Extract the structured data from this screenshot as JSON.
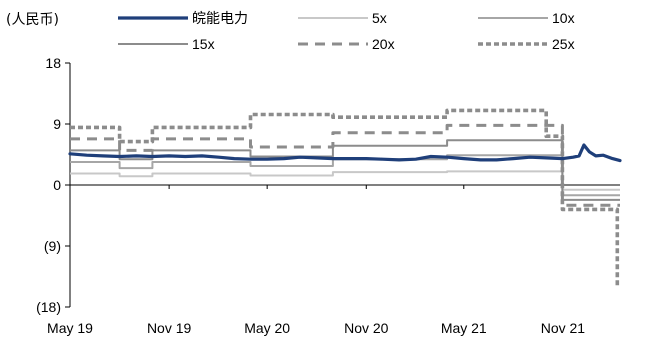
{
  "unit_label": "(人民币)",
  "chart_data": {
    "type": "line",
    "title": "",
    "xlabel": "",
    "ylabel": "(人民币)",
    "ylim": [
      -18,
      18
    ],
    "y_ticks": [
      18,
      9,
      0,
      -9,
      -18
    ],
    "y_tick_labels": [
      "18",
      "9",
      "0",
      "(9)",
      "(18)"
    ],
    "x_range": [
      "2019-05-01",
      "2022-02-15"
    ],
    "x_ticks": [
      "2019-05-01",
      "2019-11-01",
      "2020-05-01",
      "2020-11-01",
      "2021-05-01",
      "2021-11-01"
    ],
    "x_tick_labels": [
      "May 19",
      "Nov 19",
      "May 20",
      "Nov 20",
      "May 21",
      "Nov 21"
    ],
    "grid": false,
    "legend_position": "top",
    "series": [
      {
        "name": "皖能电力",
        "color": "#1f3f7a",
        "style": "solid-thick",
        "points": [
          [
            "2019-05-01",
            4.6
          ],
          [
            "2019-06-01",
            4.4
          ],
          [
            "2019-07-01",
            4.3
          ],
          [
            "2019-08-01",
            4.2
          ],
          [
            "2019-09-01",
            4.3
          ],
          [
            "2019-10-01",
            4.2
          ],
          [
            "2019-11-01",
            4.3
          ],
          [
            "2019-12-01",
            4.2
          ],
          [
            "2020-01-01",
            4.3
          ],
          [
            "2020-02-01",
            4.1
          ],
          [
            "2020-03-01",
            3.9
          ],
          [
            "2020-04-01",
            3.8
          ],
          [
            "2020-05-01",
            3.8
          ],
          [
            "2020-06-01",
            3.9
          ],
          [
            "2020-07-01",
            4.1
          ],
          [
            "2020-08-01",
            4.0
          ],
          [
            "2020-09-01",
            3.9
          ],
          [
            "2020-10-01",
            3.9
          ],
          [
            "2020-11-01",
            3.9
          ],
          [
            "2020-12-01",
            3.8
          ],
          [
            "2021-01-01",
            3.7
          ],
          [
            "2021-02-01",
            3.8
          ],
          [
            "2021-03-01",
            4.2
          ],
          [
            "2021-04-01",
            4.1
          ],
          [
            "2021-05-01",
            3.9
          ],
          [
            "2021-06-01",
            3.7
          ],
          [
            "2021-07-01",
            3.7
          ],
          [
            "2021-08-01",
            3.9
          ],
          [
            "2021-09-01",
            4.1
          ],
          [
            "2021-10-01",
            4.0
          ],
          [
            "2021-11-01",
            3.9
          ],
          [
            "2021-11-20",
            4.1
          ],
          [
            "2021-12-01",
            4.3
          ],
          [
            "2021-12-10",
            5.9
          ],
          [
            "2021-12-20",
            4.9
          ],
          [
            "2022-01-01",
            4.3
          ],
          [
            "2022-01-15",
            4.4
          ],
          [
            "2022-02-01",
            3.9
          ],
          [
            "2022-02-15",
            3.6
          ]
        ]
      },
      {
        "name": "5x",
        "color": "#c8c8c8",
        "style": "solid",
        "points": [
          [
            "2019-05-01",
            1.7
          ],
          [
            "2019-08-01",
            1.7
          ],
          [
            "2019-08-01",
            1.3
          ],
          [
            "2019-10-01",
            1.3
          ],
          [
            "2019-10-01",
            1.7
          ],
          [
            "2020-03-31",
            1.7
          ],
          [
            "2020-03-31",
            1.4
          ],
          [
            "2020-08-31",
            1.4
          ],
          [
            "2020-08-31",
            1.9
          ],
          [
            "2021-03-31",
            1.9
          ],
          [
            "2021-03-31",
            2.0
          ],
          [
            "2021-10-31",
            2.0
          ],
          [
            "2021-10-31",
            -0.7
          ],
          [
            "2022-02-15",
            -0.7
          ]
        ]
      },
      {
        "name": "10x",
        "color": "#a6a6a6",
        "style": "solid",
        "points": [
          [
            "2019-05-01",
            3.4
          ],
          [
            "2019-08-01",
            3.4
          ],
          [
            "2019-08-01",
            2.5
          ],
          [
            "2019-10-01",
            2.5
          ],
          [
            "2019-10-01",
            3.4
          ],
          [
            "2020-03-31",
            3.4
          ],
          [
            "2020-03-31",
            2.8
          ],
          [
            "2020-08-31",
            2.8
          ],
          [
            "2020-08-31",
            3.8
          ],
          [
            "2021-03-31",
            3.8
          ],
          [
            "2021-03-31",
            4.4
          ],
          [
            "2021-10-31",
            4.4
          ],
          [
            "2021-10-31",
            -1.5
          ],
          [
            "2022-02-15",
            -1.5
          ]
        ]
      },
      {
        "name": "15x",
        "color": "#8c8c8c",
        "style": "solid",
        "points": [
          [
            "2019-05-01",
            5.1
          ],
          [
            "2019-08-01",
            5.1
          ],
          [
            "2019-08-01",
            3.8
          ],
          [
            "2019-10-01",
            3.8
          ],
          [
            "2019-10-01",
            5.1
          ],
          [
            "2020-03-31",
            5.1
          ],
          [
            "2020-03-31",
            4.2
          ],
          [
            "2020-08-31",
            4.2
          ],
          [
            "2020-08-31",
            5.8
          ],
          [
            "2021-03-31",
            5.8
          ],
          [
            "2021-03-31",
            6.6
          ],
          [
            "2021-10-31",
            6.6
          ],
          [
            "2021-10-31",
            -2.2
          ],
          [
            "2022-02-15",
            -2.2
          ]
        ]
      },
      {
        "name": "20x",
        "color": "#8c8c8c",
        "style": "dashed",
        "points": [
          [
            "2019-05-01",
            6.8
          ],
          [
            "2019-08-01",
            6.8
          ],
          [
            "2019-08-01",
            5.1
          ],
          [
            "2019-10-01",
            5.1
          ],
          [
            "2019-10-01",
            6.8
          ],
          [
            "2020-03-31",
            6.8
          ],
          [
            "2020-03-31",
            5.6
          ],
          [
            "2020-08-31",
            5.6
          ],
          [
            "2020-08-31",
            7.7
          ],
          [
            "2021-03-31",
            7.7
          ],
          [
            "2021-03-31",
            8.8
          ],
          [
            "2021-10-31",
            8.8
          ],
          [
            "2021-10-31",
            -3.0
          ],
          [
            "2022-02-15",
            -3.0
          ]
        ]
      },
      {
        "name": "25x",
        "color": "#8c8c8c",
        "style": "dotted-thick",
        "points": [
          [
            "2019-05-01",
            8.5
          ],
          [
            "2019-08-01",
            8.5
          ],
          [
            "2019-08-01",
            6.4
          ],
          [
            "2019-10-01",
            6.4
          ],
          [
            "2019-10-01",
            8.5
          ],
          [
            "2020-03-31",
            8.5
          ],
          [
            "2020-03-31",
            10.4
          ],
          [
            "2020-08-31",
            10.4
          ],
          [
            "2020-08-31",
            10.0
          ],
          [
            "2021-03-31",
            10.0
          ],
          [
            "2021-03-31",
            11.0
          ],
          [
            "2021-10-01",
            11.0
          ],
          [
            "2021-10-01",
            7.2
          ],
          [
            "2021-10-31",
            7.2
          ],
          [
            "2021-10-31",
            -3.6
          ],
          [
            "2022-02-10",
            -3.6
          ],
          [
            "2022-02-10",
            -15.0
          ]
        ]
      }
    ]
  }
}
